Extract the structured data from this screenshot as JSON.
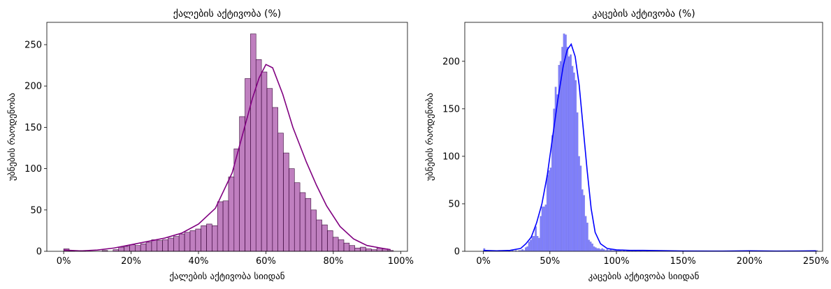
{
  "chart_data": [
    {
      "type": "bar",
      "title": "ქალების აქტივობა (%)",
      "xlabel": "ქალების აქტივობა სიიდან",
      "ylabel": "უბნების რაოდენობა",
      "xlim": [
        -0.05,
        1.02
      ],
      "ylim": [
        0,
        277
      ],
      "xticks": [
        0,
        0.2,
        0.4,
        0.6,
        0.8,
        1.0
      ],
      "xtick_labels": [
        "0%",
        "20%",
        "40%",
        "60%",
        "80%",
        "100%"
      ],
      "yticks": [
        0,
        50,
        100,
        150,
        200,
        250
      ],
      "ytick_labels": [
        "0",
        "50",
        "100",
        "150",
        "200",
        "250"
      ],
      "bar_color": "#800080",
      "kde_color": "#800080",
      "bin_width": 0.0163,
      "bin_start": 0.0,
      "values": [
        3,
        1,
        0,
        1,
        0,
        0,
        0,
        1,
        0,
        2,
        5,
        6,
        8,
        7,
        9,
        11,
        14,
        13,
        14,
        16,
        18,
        21,
        23,
        25,
        27,
        31,
        33,
        31,
        60,
        61,
        90,
        124,
        163,
        209,
        263,
        232,
        217,
        197,
        174,
        143,
        119,
        100,
        83,
        71,
        64,
        50,
        38,
        32,
        25,
        17,
        14,
        10,
        7,
        4,
        5,
        3,
        2,
        4,
        3,
        1
      ],
      "kde": [
        [
          0,
          1.5
        ],
        [
          0.05,
          0.5
        ],
        [
          0.1,
          1.5
        ],
        [
          0.15,
          4
        ],
        [
          0.2,
          8
        ],
        [
          0.25,
          12
        ],
        [
          0.3,
          16
        ],
        [
          0.35,
          22
        ],
        [
          0.4,
          33
        ],
        [
          0.45,
          52
        ],
        [
          0.5,
          95
        ],
        [
          0.53,
          140
        ],
        [
          0.56,
          185
        ],
        [
          0.58,
          210
        ],
        [
          0.6,
          226
        ],
        [
          0.62,
          222
        ],
        [
          0.65,
          190
        ],
        [
          0.68,
          150
        ],
        [
          0.72,
          108
        ],
        [
          0.75,
          80
        ],
        [
          0.78,
          55
        ],
        [
          0.82,
          30
        ],
        [
          0.86,
          15
        ],
        [
          0.9,
          7
        ],
        [
          0.94,
          4
        ],
        [
          0.97,
          2
        ]
      ]
    },
    {
      "type": "bar",
      "title": "კაცების აქტივობა (%)",
      "xlabel": "კაცების აქტივობა სიიდან",
      "ylabel": "უბნების რაოდენობა",
      "xlim": [
        -0.14,
        2.55
      ],
      "ylim": [
        0,
        241
      ],
      "xticks": [
        0,
        0.5,
        1.0,
        1.5,
        2.0,
        2.5
      ],
      "xtick_labels": [
        "0%",
        "50%",
        "100%",
        "150%",
        "200%",
        "250%"
      ],
      "yticks": [
        0,
        50,
        100,
        150,
        200
      ],
      "ytick_labels": [
        "0",
        "50",
        "100",
        "150",
        "200"
      ],
      "bar_color": "#0000ff",
      "kde_color": "#0000ff",
      "bin_width": 0.0125,
      "bin_start": 0.0,
      "values": [
        3,
        1,
        0,
        0,
        0,
        0,
        0,
        0,
        0,
        1,
        0,
        0,
        0,
        0,
        0,
        1,
        0,
        1,
        0,
        1,
        0,
        1,
        1,
        2,
        1,
        4,
        5,
        10,
        12,
        16,
        16,
        26,
        16,
        14,
        37,
        47,
        47,
        49,
        80,
        85,
        88,
        122,
        150,
        173,
        165,
        196,
        200,
        215,
        229,
        228,
        215,
        205,
        207,
        195,
        188,
        180,
        146,
        100,
        90,
        65,
        59,
        37,
        30,
        12,
        10,
        8,
        5,
        4,
        3,
        3,
        2,
        3,
        2,
        1,
        2,
        1,
        2,
        1,
        1,
        1,
        1,
        1,
        1,
        0,
        1,
        0,
        1,
        1,
        0,
        1,
        0,
        1,
        0,
        0,
        1,
        0,
        0,
        0,
        1,
        0,
        0,
        0,
        0,
        0,
        0,
        0,
        0,
        0,
        0,
        0,
        0,
        0,
        0,
        0,
        0,
        0,
        0,
        0,
        0,
        0,
        0,
        0,
        0,
        0,
        0,
        0,
        0,
        0,
        0,
        0,
        0,
        0,
        0,
        0,
        0,
        0,
        0,
        0,
        0,
        0,
        0,
        0,
        0,
        0,
        0,
        0,
        0,
        0,
        0,
        0,
        0,
        0,
        0,
        0,
        0,
        0,
        0,
        0,
        0,
        0,
        0,
        0,
        0,
        0,
        0,
        0,
        0,
        0,
        0,
        0,
        0,
        0,
        0,
        0,
        0,
        0,
        0,
        0,
        0,
        0,
        0,
        0,
        0,
        0,
        0,
        0,
        0,
        0,
        0,
        0,
        0,
        0,
        0,
        0,
        0,
        0,
        0,
        0,
        0,
        0,
        1
      ],
      "kde": [
        [
          0,
          1
        ],
        [
          0.1,
          0.5
        ],
        [
          0.2,
          1
        ],
        [
          0.28,
          3
        ],
        [
          0.32,
          8
        ],
        [
          0.36,
          15
        ],
        [
          0.4,
          30
        ],
        [
          0.44,
          50
        ],
        [
          0.48,
          80
        ],
        [
          0.52,
          120
        ],
        [
          0.56,
          160
        ],
        [
          0.6,
          195
        ],
        [
          0.63,
          212
        ],
        [
          0.66,
          218
        ],
        [
          0.69,
          205
        ],
        [
          0.72,
          175
        ],
        [
          0.75,
          130
        ],
        [
          0.78,
          85
        ],
        [
          0.81,
          45
        ],
        [
          0.84,
          20
        ],
        [
          0.88,
          8
        ],
        [
          0.93,
          3
        ],
        [
          1.0,
          1.5
        ],
        [
          1.1,
          1
        ],
        [
          1.2,
          1
        ],
        [
          1.3,
          0.8
        ],
        [
          1.5,
          0.3
        ],
        [
          1.8,
          0.2
        ],
        [
          2.0,
          0.5
        ],
        [
          2.2,
          0.2
        ],
        [
          2.5,
          0.5
        ]
      ]
    }
  ]
}
